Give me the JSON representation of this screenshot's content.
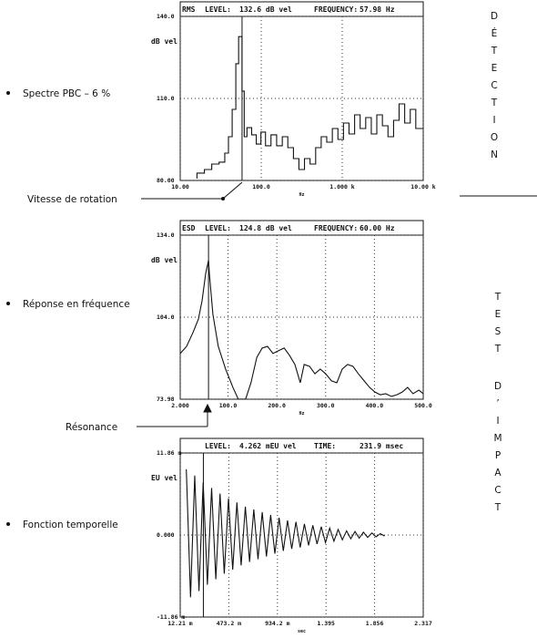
{
  "chart_data": [
    {
      "type": "step",
      "header": [
        "RMS",
        "LEVEL:",
        "132.6 dB vel",
        "FREQUENCY:",
        "57.98 Hz"
      ],
      "ylabel": "dB vel",
      "xlabel": "Hz",
      "log_x": true,
      "cursor": 57.98,
      "xlim": [
        10,
        10000
      ],
      "xticks": [
        {
          "value": 10,
          "label": "10.00"
        },
        {
          "value": 100,
          "label": "100.0"
        },
        {
          "value": 1000,
          "label": "1.000 k"
        },
        {
          "value": 10000,
          "label": "10.00 k"
        }
      ],
      "ylim": [
        80,
        140
      ],
      "yticks": [
        {
          "value": 80,
          "label": "80.00"
        },
        {
          "value": 110,
          "label": "110.0"
        },
        {
          "value": 140,
          "label": "140.0"
        }
      ],
      "x": [
        16.1,
        19.9,
        24.5,
        30.2,
        35.5,
        39.4,
        43.8,
        48.6,
        52.6,
        57.98,
        61.7,
        66.7,
        76.2,
        86.9,
        99.1,
        113,
        132,
        155,
        182,
        213,
        250,
        292,
        342,
        401,
        470,
        550,
        644,
        755,
        885,
        1036,
        1213,
        1422,
        1664,
        1950,
        2285,
        2673,
        3133,
        3673,
        4305,
        5035,
        5902,
        6918,
        8091,
        9484
      ],
      "values": [
        80.7,
        82.7,
        84,
        86,
        86.7,
        90,
        96,
        106,
        122.7,
        132.6,
        112.7,
        96,
        99.3,
        96.7,
        93.3,
        97.7,
        92.7,
        96.7,
        92.7,
        96,
        92,
        88,
        84,
        88,
        86,
        92,
        96,
        94,
        99,
        95,
        101,
        97,
        104,
        99,
        103,
        97,
        104,
        100,
        96,
        102,
        108,
        101,
        106,
        99
      ]
    },
    {
      "type": "line",
      "header": [
        "ESD",
        "LEVEL:",
        "124.8 dB vel",
        "FREQUENCY:",
        "60.00 Hz"
      ],
      "ylabel": "dB vel",
      "xlabel": "Hz",
      "cursor": 60,
      "xlim": [
        2,
        500
      ],
      "xticks": [
        {
          "value": 2,
          "label": "2.000"
        },
        {
          "value": 100,
          "label": "100.0"
        },
        {
          "value": 200,
          "label": "200.0"
        },
        {
          "value": 300,
          "label": "300.0"
        },
        {
          "value": 400,
          "label": "400.0"
        },
        {
          "value": 500,
          "label": "500.0"
        }
      ],
      "ylim": [
        73.98,
        134
      ],
      "yticks": [
        73.98,
        {
          "value": 104,
          "label": "104.0"
        },
        {
          "value": 134,
          "label": "134.0"
        }
      ],
      "x": [
        2,
        15,
        28,
        39.3,
        46.8,
        54.2,
        60,
        61.7,
        69,
        80,
        95,
        110,
        121,
        136,
        147,
        159,
        170,
        181,
        192,
        203,
        215,
        226,
        237,
        248,
        256,
        267,
        278,
        289,
        300,
        312,
        323,
        334,
        345,
        356,
        367,
        379,
        390,
        401,
        412,
        423,
        435,
        446,
        457,
        468,
        479,
        491,
        500
      ],
      "values": [
        90.7,
        93.3,
        98.3,
        103.3,
        110,
        120,
        124.8,
        120,
        105,
        93.3,
        85,
        78.3,
        74,
        74,
        80,
        89.3,
        92.7,
        93.3,
        90.7,
        91.7,
        92.7,
        90,
        86.7,
        80,
        86.7,
        86,
        83.3,
        85,
        83.3,
        80.7,
        80,
        85,
        86.7,
        86,
        83.3,
        80.7,
        78.3,
        76.6,
        75.6,
        76,
        75,
        75.6,
        76.6,
        78.3,
        76,
        77.3,
        76
      ]
    },
    {
      "type": "line",
      "header": [
        "LEVEL:",
        "4.262 mEU vel",
        "TIME:",
        "231.9 msec"
      ],
      "ylabel": "EU vel",
      "xlabel": "sec",
      "cursor": 0.2319,
      "xlim": [
        0.01221,
        2.317
      ],
      "xticks": [
        {
          "value": 0.01221,
          "label": "12.21 m"
        },
        {
          "value": 0.4732,
          "label": "473.2 m"
        },
        {
          "value": 0.9342,
          "label": "934.2 m"
        },
        1.395,
        1.856,
        2.317
      ],
      "ylim": [
        -0.01186,
        0.01186
      ],
      "yticks": [
        {
          "value": -0.01186,
          "label": "-11.86 m"
        },
        {
          "value": 0,
          "label": "0.000"
        },
        {
          "value": 0.01186,
          "label": "11.86 m"
        }
      ],
      "x": [
        0.07,
        0.11,
        0.15,
        0.19,
        0.23,
        0.27,
        0.31,
        0.35,
        0.39,
        0.43,
        0.47,
        0.51,
        0.55,
        0.59,
        0.63,
        0.67,
        0.71,
        0.75,
        0.79,
        0.83,
        0.87,
        0.91,
        0.95,
        0.99,
        1.03,
        1.07,
        1.11,
        1.15,
        1.19,
        1.23,
        1.27,
        1.31,
        1.35,
        1.39,
        1.43,
        1.47,
        1.51,
        1.55,
        1.59,
        1.63,
        1.67,
        1.71,
        1.75,
        1.79,
        1.83,
        1.87,
        1.91,
        1.95
      ],
      "values": [
        0.0095,
        -0.009,
        0.0086,
        -0.0081,
        0.0076,
        -0.0072,
        0.0068,
        -0.0064,
        0.006,
        -0.0056,
        0.0053,
        -0.005,
        0.0047,
        -0.0044,
        0.0041,
        -0.0039,
        0.0037,
        -0.0035,
        0.0033,
        -0.0031,
        0.0029,
        -0.0027,
        0.0025,
        -0.0023,
        0.0021,
        -0.002,
        0.0019,
        -0.0018,
        0.0016,
        -0.0015,
        0.0014,
        -0.0013,
        0.0012,
        -0.0011,
        0.001,
        -0.0009,
        0.0008,
        -0.0007,
        0.0006,
        -0.00055,
        0.0005,
        -0.00045,
        0.0004,
        -0.00035,
        0.0003,
        -0.00025,
        0.0002,
        -0.00015
      ]
    }
  ],
  "side_labels": [
    "Spectre PBC – 6 %",
    "Vitesse de rotation",
    "Réponse en fréquence",
    "Résonance",
    "Fonction temporelle"
  ],
  "section_labels": [
    "DÉTECTION",
    "TEST",
    "D’IMPACT"
  ]
}
